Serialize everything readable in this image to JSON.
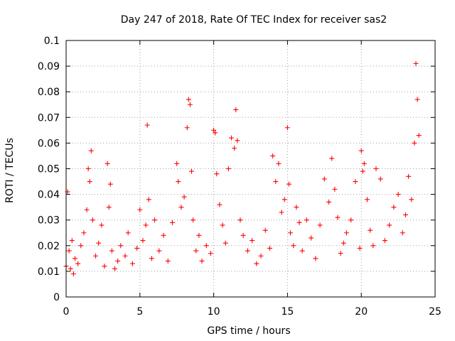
{
  "chart_data": {
    "type": "scatter",
    "title": "Day 247 of 2018, Rate Of TEC Index for receiver sas2",
    "xlabel": "GPS time / hours",
    "ylabel": "ROTI / TECUs",
    "xlim": [
      0,
      25
    ],
    "ylim": [
      0,
      0.1
    ],
    "xticks": [
      0,
      5,
      10,
      15,
      20,
      25
    ],
    "xtick_labels": [
      "0",
      "5",
      "10",
      "15",
      "20",
      "25"
    ],
    "yticks": [
      0,
      0.01,
      0.02,
      0.03,
      0.04,
      0.05,
      0.06,
      0.07,
      0.08,
      0.09,
      0.1
    ],
    "ytick_labels": [
      "0",
      "0.01",
      "0.02",
      "0.03",
      "0.04",
      "0.05",
      "0.06",
      "0.07",
      "0.08",
      "0.09",
      "0.1"
    ],
    "grid": true,
    "marker": "+",
    "color": "#ff0000",
    "series": [
      {
        "name": "sas2",
        "x": [
          0.0,
          0.1,
          0.2,
          0.3,
          0.4,
          0.5,
          0.6,
          0.8,
          1.0,
          1.2,
          1.4,
          1.5,
          1.6,
          1.7,
          1.8,
          2.0,
          2.2,
          2.4,
          2.6,
          2.8,
          2.9,
          3.0,
          3.1,
          3.3,
          3.5,
          3.7,
          4.0,
          4.2,
          4.5,
          4.8,
          5.0,
          5.2,
          5.4,
          5.5,
          5.6,
          5.8,
          6.0,
          6.3,
          6.6,
          6.9,
          7.2,
          7.5,
          7.6,
          7.8,
          8.0,
          8.2,
          8.3,
          8.4,
          8.5,
          8.6,
          8.8,
          9.0,
          9.2,
          9.5,
          9.8,
          10.0,
          10.1,
          10.2,
          10.4,
          10.6,
          10.8,
          11.0,
          11.2,
          11.4,
          11.5,
          11.6,
          11.8,
          12.0,
          12.3,
          12.6,
          12.9,
          13.2,
          13.5,
          13.8,
          14.0,
          14.2,
          14.4,
          14.6,
          14.8,
          15.0,
          15.1,
          15.2,
          15.4,
          15.6,
          15.8,
          16.0,
          16.3,
          16.6,
          16.9,
          17.2,
          17.5,
          17.8,
          18.0,
          18.2,
          18.4,
          18.6,
          18.8,
          19.0,
          19.3,
          19.6,
          19.9,
          20.0,
          20.1,
          20.2,
          20.4,
          20.6,
          20.8,
          21.0,
          21.3,
          21.6,
          21.9,
          22.2,
          22.5,
          22.8,
          23.0,
          23.2,
          23.4,
          23.6,
          23.7,
          23.8,
          23.9
        ],
        "y": [
          0.012,
          0.041,
          0.018,
          0.011,
          0.022,
          0.009,
          0.015,
          0.013,
          0.02,
          0.025,
          0.034,
          0.05,
          0.045,
          0.057,
          0.03,
          0.016,
          0.021,
          0.028,
          0.012,
          0.052,
          0.035,
          0.044,
          0.018,
          0.011,
          0.014,
          0.02,
          0.016,
          0.025,
          0.013,
          0.019,
          0.034,
          0.022,
          0.028,
          0.067,
          0.038,
          0.015,
          0.03,
          0.018,
          0.024,
          0.014,
          0.029,
          0.052,
          0.045,
          0.035,
          0.039,
          0.066,
          0.077,
          0.075,
          0.049,
          0.03,
          0.018,
          0.024,
          0.014,
          0.02,
          0.017,
          0.065,
          0.064,
          0.048,
          0.036,
          0.028,
          0.021,
          0.05,
          0.062,
          0.058,
          0.073,
          0.061,
          0.03,
          0.024,
          0.018,
          0.022,
          0.013,
          0.016,
          0.026,
          0.019,
          0.055,
          0.045,
          0.052,
          0.033,
          0.038,
          0.066,
          0.044,
          0.025,
          0.02,
          0.035,
          0.029,
          0.018,
          0.03,
          0.023,
          0.015,
          0.028,
          0.046,
          0.037,
          0.054,
          0.042,
          0.031,
          0.017,
          0.021,
          0.025,
          0.03,
          0.045,
          0.019,
          0.057,
          0.049,
          0.052,
          0.038,
          0.026,
          0.02,
          0.05,
          0.046,
          0.022,
          0.028,
          0.035,
          0.04,
          0.025,
          0.032,
          0.047,
          0.038,
          0.06,
          0.091,
          0.077,
          0.063
        ]
      }
    ]
  }
}
